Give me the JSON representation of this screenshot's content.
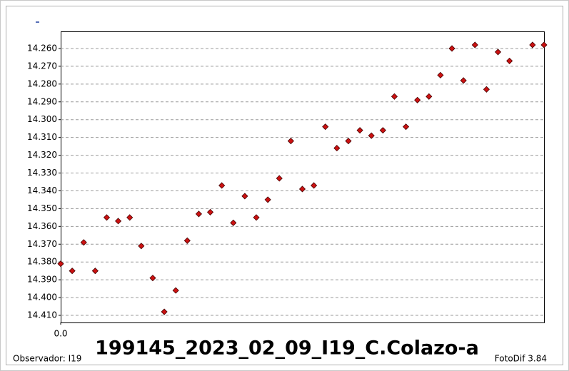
{
  "chart_data": {
    "type": "scatter",
    "title": "199145_2023_02_09_I19_C.Colazo-a",
    "observer": "Observador: I19",
    "software": "FotoDif 3.84",
    "x": [
      0,
      1,
      2,
      3,
      4,
      5,
      6,
      7,
      8,
      9,
      10,
      11,
      12,
      13,
      14,
      15,
      16,
      17,
      18,
      19,
      20,
      21,
      22,
      23,
      24,
      25,
      26,
      27,
      28,
      29,
      30,
      31,
      32,
      33,
      34,
      35,
      36,
      37,
      38,
      39,
      41,
      42
    ],
    "values": [
      14.381,
      14.385,
      14.369,
      14.385,
      14.355,
      14.357,
      14.355,
      14.371,
      14.389,
      14.408,
      14.396,
      14.368,
      14.353,
      14.352,
      14.337,
      14.358,
      14.343,
      14.355,
      14.345,
      14.333,
      14.312,
      14.339,
      14.337,
      14.304,
      14.316,
      14.312,
      14.306,
      14.309,
      14.306,
      14.287,
      14.304,
      14.289,
      14.287,
      14.275,
      14.26,
      14.278,
      14.258,
      14.283,
      14.262,
      14.267,
      14.258,
      14.258
    ],
    "color": "#cc1111",
    "xlim": [
      0,
      42
    ],
    "xticks": [
      {
        "value": 0,
        "label": "0.0"
      }
    ],
    "ylim": [
      14.2504,
      14.414
    ],
    "y_inverted": true,
    "yticks": [
      {
        "value": 14.26,
        "label": "14.260"
      },
      {
        "value": 14.27,
        "label": "14.270"
      },
      {
        "value": 14.28,
        "label": "14.280"
      },
      {
        "value": 14.29,
        "label": "14.290"
      },
      {
        "value": 14.3,
        "label": "14.300"
      },
      {
        "value": 14.31,
        "label": "14.310"
      },
      {
        "value": 14.32,
        "label": "14.320"
      },
      {
        "value": 14.33,
        "label": "14.330"
      },
      {
        "value": 14.34,
        "label": "14.340"
      },
      {
        "value": 14.35,
        "label": "14.350"
      },
      {
        "value": 14.36,
        "label": "14.360"
      },
      {
        "value": 14.37,
        "label": "14.370"
      },
      {
        "value": 14.38,
        "label": "14.380"
      },
      {
        "value": 14.39,
        "label": "14.390"
      },
      {
        "value": 14.4,
        "label": "14.400"
      },
      {
        "value": 14.41,
        "label": "14.410"
      }
    ],
    "grid": true
  }
}
